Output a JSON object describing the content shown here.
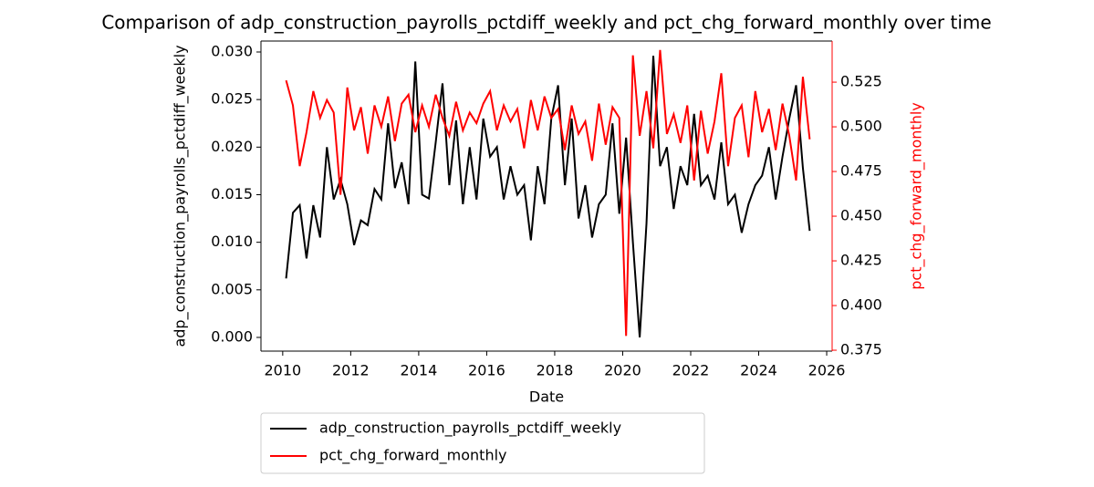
{
  "chart_data": {
    "type": "line",
    "title": "Comparison of adp_construction_payrolls_pctdiff_weekly and pct_chg_forward_monthly over time",
    "xlabel": "Date",
    "ylabel": "adp_construction_payrolls_pctdiff_weekly",
    "y2label": "pct_chg_forward_monthly",
    "legend": "below",
    "x": [
      2010.1,
      2010.3,
      2010.5,
      2010.7,
      2010.9,
      2011.1,
      2011.3,
      2011.5,
      2011.7,
      2011.9,
      2012.1,
      2012.3,
      2012.5,
      2012.7,
      2012.9,
      2013.1,
      2013.3,
      2013.5,
      2013.7,
      2013.9,
      2014.1,
      2014.3,
      2014.5,
      2014.7,
      2014.9,
      2015.1,
      2015.3,
      2015.5,
      2015.7,
      2015.9,
      2016.1,
      2016.3,
      2016.5,
      2016.7,
      2016.9,
      2017.1,
      2017.3,
      2017.5,
      2017.7,
      2017.9,
      2018.1,
      2018.3,
      2018.5,
      2018.7,
      2018.9,
      2019.1,
      2019.3,
      2019.5,
      2019.7,
      2019.9,
      2020.1,
      2020.3,
      2020.5,
      2020.7,
      2020.9,
      2021.1,
      2021.3,
      2021.5,
      2021.7,
      2021.9,
      2022.1,
      2022.3,
      2022.5,
      2022.7,
      2022.9,
      2023.1,
      2023.3,
      2023.5,
      2023.7,
      2023.9,
      2024.1,
      2024.3,
      2024.5,
      2024.7,
      2024.9,
      2025.1,
      2025.3,
      2025.5
    ],
    "series": [
      {
        "name": "adp_construction_payrolls_pctdiff_weekly",
        "color": "#000000",
        "axis": "y",
        "values": [
          0.0062,
          0.0131,
          0.0139,
          0.0083,
          0.0139,
          0.0105,
          0.02,
          0.0145,
          0.0166,
          0.014,
          0.0097,
          0.0123,
          0.0118,
          0.0156,
          0.0145,
          0.0225,
          0.0157,
          0.0184,
          0.014,
          0.029,
          0.015,
          0.0146,
          0.0205,
          0.0267,
          0.016,
          0.0228,
          0.014,
          0.02,
          0.0145,
          0.023,
          0.019,
          0.02,
          0.0145,
          0.018,
          0.015,
          0.016,
          0.0102,
          0.018,
          0.014,
          0.023,
          0.0265,
          0.016,
          0.023,
          0.0125,
          0.016,
          0.0105,
          0.014,
          0.015,
          0.0225,
          0.013,
          0.021,
          0.01,
          0.0,
          0.012,
          0.0296,
          0.018,
          0.02,
          0.0135,
          0.018,
          0.016,
          0.0235,
          0.016,
          0.017,
          0.0145,
          0.0205,
          0.014,
          0.015,
          0.011,
          0.014,
          0.016,
          0.017,
          0.02,
          0.0145,
          0.019,
          0.023,
          0.0265,
          0.0178,
          0.0112
        ]
      },
      {
        "name": "pct_chg_forward_monthly",
        "color": "#ff0000",
        "axis": "y2",
        "values": [
          0.526,
          0.512,
          0.478,
          0.497,
          0.52,
          0.505,
          0.515,
          0.508,
          0.462,
          0.522,
          0.498,
          0.511,
          0.485,
          0.512,
          0.5,
          0.517,
          0.492,
          0.513,
          0.518,
          0.497,
          0.512,
          0.5,
          0.518,
          0.505,
          0.495,
          0.514,
          0.498,
          0.508,
          0.502,
          0.513,
          0.52,
          0.498,
          0.512,
          0.503,
          0.51,
          0.488,
          0.515,
          0.498,
          0.517,
          0.505,
          0.51,
          0.487,
          0.512,
          0.496,
          0.503,
          0.481,
          0.513,
          0.49,
          0.511,
          0.505,
          0.383,
          0.54,
          0.495,
          0.52,
          0.488,
          0.543,
          0.496,
          0.507,
          0.491,
          0.512,
          0.47,
          0.509,
          0.485,
          0.503,
          0.53,
          0.478,
          0.505,
          0.512,
          0.483,
          0.52,
          0.497,
          0.51,
          0.487,
          0.513,
          0.495,
          0.47,
          0.528,
          0.493
        ]
      }
    ],
    "xlim": [
      2009.36,
      2026.16
    ],
    "xticks": [
      2010,
      2012,
      2014,
      2016,
      2018,
      2020,
      2022,
      2024,
      2026
    ],
    "ylim": [
      -0.00144,
      0.03115
    ],
    "yticks": [
      {
        "value": 0,
        "label": "0.000"
      },
      {
        "value": 0.005,
        "label": "0.005"
      },
      {
        "value": 0.01,
        "label": "0.010"
      },
      {
        "value": 0.015,
        "label": "0.015"
      },
      {
        "value": 0.02,
        "label": "0.020"
      },
      {
        "value": 0.025,
        "label": "0.025"
      },
      {
        "value": 0.03,
        "label": "0.030"
      }
    ],
    "y2lim": [
      0.3745,
      0.548
    ],
    "y2ticks": [
      0.375,
      {
        "value": 0.4,
        "label": "0.400"
      },
      0.425,
      {
        "value": 0.45,
        "label": "0.450"
      },
      0.475,
      {
        "value": 0.5,
        "label": "0.500"
      },
      0.525
    ]
  }
}
